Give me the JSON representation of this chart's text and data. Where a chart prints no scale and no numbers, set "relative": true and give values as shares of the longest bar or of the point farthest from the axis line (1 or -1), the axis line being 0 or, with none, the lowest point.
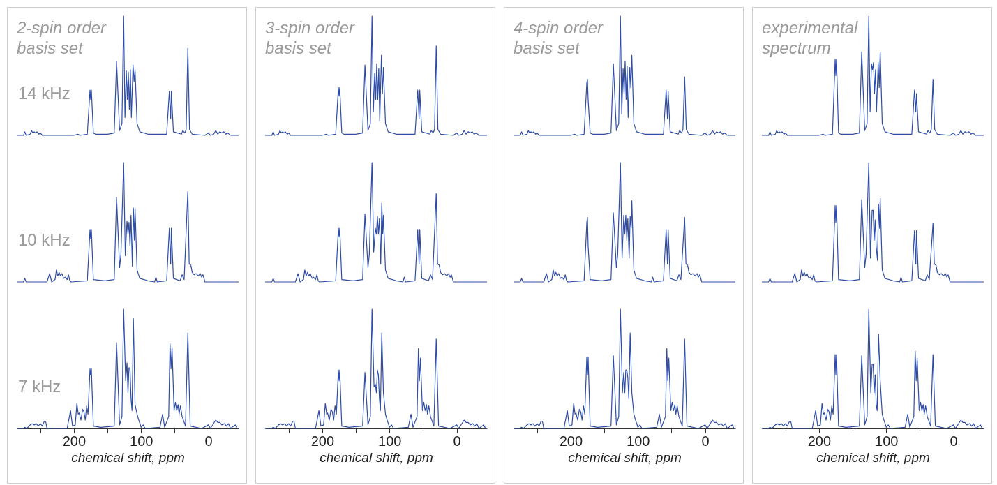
{
  "chart_data": [
    {
      "type": "line",
      "title": "2-spin order basis set",
      "annotations": [
        "14 kHz"
      ],
      "relative": true,
      "color": "#2f4da6",
      "xlim": [
        285,
        -45
      ],
      "tick_labels": false,
      "x": [
        285,
        275,
        273,
        271,
        265,
        263,
        261,
        259,
        257,
        255,
        252,
        250,
        247,
        200,
        194,
        191,
        180,
        176,
        175,
        174,
        171,
        168,
        150,
        140,
        136.5,
        132,
        128.5,
        126,
        124,
        122,
        120.5,
        119,
        117.5,
        116,
        114.5,
        112,
        110.5,
        109,
        106,
        102,
        90,
        62,
        58,
        56,
        55,
        52,
        40,
        38,
        35,
        33,
        30.5,
        28,
        24,
        5,
        0,
        -3,
        -8,
        -11,
        -14,
        -17,
        -20,
        -23,
        -26,
        -29,
        -33,
        -45
      ],
      "values": [
        0,
        0,
        0.03,
        0,
        0.01,
        0.04,
        0.02,
        0.03,
        0.02,
        0.03,
        0.01,
        0.02,
        0,
        0,
        0.01,
        0,
        0.01,
        0.38,
        0.3,
        0.38,
        0.02,
        0.01,
        0.01,
        0.02,
        0.62,
        0.04,
        0.1,
        1,
        0.15,
        0.54,
        0.3,
        0.53,
        0.22,
        0.55,
        0.15,
        0.59,
        0.45,
        0.55,
        0.1,
        0.03,
        0.01,
        0.01,
        0.37,
        0.14,
        0.37,
        0.03,
        0.01,
        0.04,
        0.02,
        0.05,
        0.73,
        0.05,
        0.01,
        0,
        0.02,
        0,
        0.01,
        0.04,
        0.01,
        0.03,
        0.02,
        0.03,
        0.01,
        0.02,
        0,
        0
      ]
    },
    {
      "type": "line",
      "annotations": [
        "10 kHz"
      ],
      "relative": true,
      "color": "#2f4da6",
      "xlim": [
        285,
        -45
      ],
      "tick_labels": false,
      "x": [
        285,
        275,
        273,
        271,
        240,
        236,
        233,
        228,
        226,
        224,
        222,
        220,
        218,
        215,
        213,
        210,
        208,
        206,
        204,
        180,
        176,
        175,
        174,
        171,
        154,
        140,
        136.5,
        132,
        130,
        126,
        123.5,
        121,
        119.5,
        118,
        116.5,
        115,
        113,
        111.5,
        110,
        109,
        106,
        102,
        90,
        80,
        78,
        76,
        62,
        58,
        56,
        55,
        52,
        42,
        39,
        36,
        30.5,
        28.5,
        26,
        24,
        21,
        18,
        15,
        12,
        10,
        8,
        5,
        -45
      ],
      "values": [
        0,
        0,
        0.03,
        0,
        0,
        0.07,
        0,
        0.02,
        0.1,
        0.05,
        0.08,
        0.05,
        0.07,
        0.03,
        0.04,
        0.02,
        0.06,
        0.01,
        0,
        0.01,
        0.44,
        0.36,
        0.44,
        0.02,
        0.01,
        0.02,
        0.71,
        0.12,
        0.23,
        1,
        0.22,
        0.51,
        0.4,
        0.5,
        0.3,
        0.56,
        0.13,
        0.62,
        0.35,
        0.62,
        0.1,
        0.03,
        0.01,
        0,
        0.04,
        0,
        0.01,
        0.45,
        0.15,
        0.45,
        0.03,
        0.01,
        0.06,
        0.02,
        0.76,
        0.15,
        0.14,
        0.08,
        0.06,
        0.07,
        0.05,
        0.07,
        0.04,
        0.06,
        0,
        0
      ]
    },
    {
      "type": "line",
      "annotations": [
        "7 kHz"
      ],
      "relative": true,
      "color": "#2f4da6",
      "xlim": [
        285,
        -45
      ],
      "tick_labels": "x",
      "xlabel": "chemical shift, ppm",
      "xticks": [
        {
          "value": 250,
          "label": null
        },
        200,
        {
          "value": 150,
          "label": null
        },
        100,
        {
          "value": 50,
          "label": null
        },
        0
      ],
      "x": [
        285,
        275,
        273,
        270,
        265,
        262,
        259,
        256,
        253,
        250,
        247,
        244,
        242,
        240,
        210,
        205,
        202,
        198,
        195.5,
        193.5,
        192,
        189.5,
        187,
        185,
        183,
        181,
        179,
        176,
        175,
        174,
        171,
        160,
        140,
        136.5,
        132,
        128.5,
        126,
        123,
        121,
        119.5,
        118,
        116.5,
        115,
        113.5,
        111.5,
        109,
        106,
        104,
        100,
        97,
        94,
        72,
        68,
        65,
        59,
        57,
        55.5,
        54,
        51,
        49,
        47,
        45,
        43.5,
        41.5,
        39,
        34,
        30.5,
        27,
        10,
        0,
        -3,
        -11,
        -14,
        -17,
        -20,
        -24,
        -27,
        -30,
        -33,
        -40,
        -43,
        -45
      ],
      "values": [
        0,
        0,
        0.01,
        0,
        0.03,
        0.04,
        0.03,
        0.04,
        0.02,
        0.04,
        0.02,
        0.06,
        0.06,
        0,
        0,
        0.15,
        0.02,
        0.03,
        0.21,
        0.12,
        0.13,
        0.07,
        0.16,
        0.14,
        0.07,
        0.19,
        0.12,
        0.5,
        0.45,
        0.5,
        0.02,
        0.01,
        0.02,
        0.72,
        0.03,
        0.1,
        1,
        0.4,
        0.55,
        0.3,
        0.51,
        0.5,
        0.25,
        0.15,
        0.92,
        0.2,
        0.12,
        0.08,
        0.01,
        0.03,
        0,
        0.01,
        0.12,
        0.01,
        0.1,
        0.71,
        0.5,
        0.68,
        0.15,
        0.22,
        0.15,
        0.2,
        0.12,
        0.19,
        0.1,
        0.02,
        0.8,
        0.02,
        0,
        0.03,
        0,
        0.07,
        0.05,
        0.05,
        0.03,
        0.04,
        0.02,
        0.04,
        0,
        0.03,
        0,
        0
      ]
    },
    {
      "type": "line",
      "title": "3-spin order basis set",
      "relative": true,
      "color": "#2f4da6",
      "xlim": [
        285,
        -45
      ],
      "tick_labels": false,
      "x": [
        285,
        275,
        273,
        271,
        265,
        263,
        261,
        259,
        257,
        255,
        252,
        250,
        247,
        200,
        194,
        191,
        180,
        176,
        175,
        174,
        171,
        168,
        150,
        140,
        136.5,
        132,
        128.5,
        126,
        124,
        122,
        120.5,
        119,
        117.5,
        116,
        114.5,
        112,
        110.5,
        109,
        106,
        102,
        90,
        62,
        58,
        56,
        55,
        52,
        40,
        38,
        35,
        33,
        30.5,
        28,
        24,
        5,
        0,
        -3,
        -8,
        -11,
        -14,
        -17,
        -20,
        -23,
        -26,
        -29,
        -33,
        -45
      ],
      "values": [
        0,
        0,
        0.03,
        0,
        0.01,
        0.04,
        0.02,
        0.03,
        0.02,
        0.03,
        0.01,
        0.02,
        0,
        0,
        0.01,
        0,
        0.01,
        0.4,
        0.33,
        0.4,
        0.02,
        0.01,
        0.01,
        0.02,
        0.59,
        0.04,
        0.1,
        1,
        0.2,
        0.52,
        0.3,
        0.6,
        0.3,
        0.56,
        0.12,
        0.67,
        0.35,
        0.57,
        0.1,
        0.03,
        0.01,
        0.01,
        0.38,
        0.14,
        0.38,
        0.03,
        0.01,
        0.04,
        0.02,
        0.05,
        0.75,
        0.05,
        0.01,
        0,
        0.02,
        0,
        0.01,
        0.04,
        0.01,
        0.03,
        0.02,
        0.03,
        0.01,
        0.02,
        0,
        0
      ]
    },
    {
      "type": "line",
      "relative": true,
      "color": "#2f4da6",
      "xlim": [
        285,
        -45
      ],
      "tick_labels": false,
      "x": [
        285,
        275,
        273,
        271,
        240,
        236,
        233,
        228,
        226,
        224,
        222,
        220,
        218,
        215,
        213,
        210,
        208,
        206,
        204,
        180,
        176,
        175,
        174,
        171,
        154,
        140,
        136.5,
        132,
        130,
        126,
        123.5,
        121,
        119.5,
        118,
        116.5,
        115,
        113,
        111.5,
        110,
        109,
        106,
        102,
        90,
        80,
        78,
        76,
        62,
        58,
        56,
        55,
        52,
        42,
        39,
        36,
        30.5,
        28.5,
        26,
        24,
        21,
        18,
        15,
        12,
        10,
        8,
        5,
        -45
      ],
      "values": [
        0,
        0,
        0.03,
        0,
        0,
        0.07,
        0,
        0.02,
        0.1,
        0.05,
        0.08,
        0.05,
        0.07,
        0.03,
        0.04,
        0.02,
        0.06,
        0.01,
        0,
        0.01,
        0.45,
        0.38,
        0.45,
        0.02,
        0.01,
        0.02,
        0.57,
        0.12,
        0.23,
        1,
        0.25,
        0.45,
        0.4,
        0.55,
        0.4,
        0.53,
        0.15,
        0.66,
        0.4,
        0.56,
        0.1,
        0.03,
        0.01,
        0,
        0.04,
        0,
        0.01,
        0.44,
        0.15,
        0.44,
        0.03,
        0.01,
        0.06,
        0.02,
        0.74,
        0.15,
        0.14,
        0.08,
        0.06,
        0.07,
        0.05,
        0.07,
        0.04,
        0.06,
        0,
        0
      ]
    },
    {
      "type": "line",
      "relative": true,
      "color": "#2f4da6",
      "xlim": [
        285,
        -45
      ],
      "tick_labels": "x",
      "xlabel": "chemical shift, ppm",
      "xticks": [
        {
          "value": 250,
          "label": null
        },
        200,
        {
          "value": 150,
          "label": null
        },
        100,
        {
          "value": 50,
          "label": null
        },
        0
      ],
      "x": [
        285,
        275,
        273,
        270,
        265,
        262,
        259,
        256,
        253,
        250,
        247,
        244,
        242,
        240,
        210,
        205,
        202,
        198,
        195.5,
        193.5,
        192,
        189.5,
        187,
        185,
        183,
        181,
        179,
        176,
        175,
        174,
        171,
        160,
        140,
        136.5,
        132,
        128.5,
        126,
        123,
        121,
        119.5,
        118,
        116.5,
        115,
        113.5,
        111.5,
        109,
        106,
        104,
        100,
        97,
        94,
        72,
        68,
        65,
        59,
        57,
        55.5,
        54,
        51,
        49,
        47,
        45,
        43.5,
        41.5,
        39,
        34,
        30.5,
        27,
        10,
        0,
        -3,
        -11,
        -14,
        -17,
        -20,
        -24,
        -27,
        -30,
        -33,
        -40,
        -43,
        -45
      ],
      "values": [
        0,
        0,
        0.01,
        0,
        0.03,
        0.04,
        0.03,
        0.04,
        0.02,
        0.04,
        0.02,
        0.06,
        0.06,
        0,
        0,
        0.15,
        0.02,
        0.03,
        0.21,
        0.12,
        0.13,
        0.07,
        0.16,
        0.14,
        0.07,
        0.19,
        0.12,
        0.49,
        0.4,
        0.49,
        0.02,
        0.01,
        0.02,
        0.47,
        0.03,
        0.1,
        1,
        0.35,
        0.37,
        0.3,
        0.49,
        0.45,
        0.25,
        0.15,
        0.8,
        0.3,
        0.12,
        0.08,
        0.01,
        0.03,
        0,
        0.01,
        0.12,
        0.01,
        0.1,
        0.67,
        0.4,
        0.59,
        0.15,
        0.22,
        0.15,
        0.2,
        0.12,
        0.19,
        0.1,
        0.02,
        0.75,
        0.02,
        0,
        0.03,
        0,
        0.07,
        0.05,
        0.05,
        0.03,
        0.04,
        0.02,
        0.04,
        0,
        0.03,
        0,
        0
      ]
    },
    {
      "type": "line",
      "title": "4-spin order basis set",
      "relative": true,
      "color": "#2f4da6",
      "xlim": [
        285,
        -45
      ],
      "tick_labels": false,
      "x": [
        285,
        275,
        273,
        271,
        265,
        263,
        261,
        259,
        257,
        255,
        252,
        250,
        247,
        200,
        194,
        191,
        180,
        176,
        175,
        174,
        171,
        168,
        150,
        140,
        136.5,
        132,
        128.5,
        126,
        124,
        122,
        120.5,
        119,
        117.5,
        116,
        114.5,
        112,
        110.5,
        109,
        106,
        102,
        90,
        62,
        58,
        56,
        55,
        52,
        40,
        38,
        35,
        33,
        30.5,
        28,
        24,
        5,
        0,
        -3,
        -8,
        -11,
        -14,
        -17,
        -20,
        -23,
        -26,
        -29,
        -33,
        -45
      ],
      "values": [
        0,
        0,
        0.03,
        0,
        0.01,
        0.04,
        0.02,
        0.03,
        0.02,
        0.03,
        0.01,
        0.02,
        0,
        0,
        0.01,
        0,
        0.01,
        0.44,
        0.47,
        0.3,
        0.02,
        0.01,
        0.01,
        0.02,
        0.6,
        0.04,
        0.1,
        1,
        0.18,
        0.56,
        0.35,
        0.62,
        0.3,
        0.58,
        0.15,
        0.57,
        0.4,
        0.67,
        0.1,
        0.03,
        0.01,
        0.01,
        0.38,
        0.14,
        0.37,
        0.03,
        0.01,
        0.04,
        0.02,
        0.05,
        0.49,
        0.05,
        0.01,
        0,
        0.02,
        0,
        0.01,
        0.04,
        0.01,
        0.03,
        0.02,
        0.03,
        0.01,
        0.02,
        0,
        0
      ]
    },
    {
      "type": "line",
      "relative": true,
      "color": "#2f4da6",
      "xlim": [
        285,
        -45
      ],
      "tick_labels": false,
      "x": [
        285,
        275,
        273,
        271,
        240,
        236,
        233,
        228,
        226,
        224,
        222,
        220,
        218,
        215,
        213,
        210,
        208,
        206,
        204,
        180,
        176,
        175,
        174,
        171,
        154,
        140,
        136.5,
        132,
        130,
        126,
        123.5,
        121,
        119.5,
        118,
        116.5,
        115,
        113,
        111.5,
        110,
        109,
        106,
        102,
        90,
        80,
        78,
        76,
        62,
        58,
        56,
        55,
        52,
        42,
        39,
        36,
        30.5,
        28.5,
        26,
        24,
        21,
        18,
        15,
        12,
        10,
        8,
        5,
        -45
      ],
      "values": [
        0,
        0,
        0.03,
        0,
        0,
        0.07,
        0,
        0.02,
        0.1,
        0.05,
        0.08,
        0.05,
        0.07,
        0.03,
        0.04,
        0.02,
        0.06,
        0.01,
        0,
        0.01,
        0.5,
        0.54,
        0.3,
        0.02,
        0.01,
        0.02,
        0.58,
        0.12,
        0.23,
        1,
        0.2,
        0.56,
        0.4,
        0.56,
        0.35,
        0.53,
        0.2,
        0.55,
        0.45,
        0.68,
        0.1,
        0.03,
        0.01,
        0,
        0.04,
        0,
        0.01,
        0.44,
        0.15,
        0.44,
        0.03,
        0.01,
        0.06,
        0.02,
        0.54,
        0.15,
        0.14,
        0.08,
        0.06,
        0.07,
        0.05,
        0.07,
        0.04,
        0.06,
        0,
        0
      ]
    },
    {
      "type": "line",
      "relative": true,
      "color": "#2f4da6",
      "xlim": [
        285,
        -45
      ],
      "tick_labels": "x",
      "xlabel": "chemical shift, ppm",
      "xticks": [
        {
          "value": 250,
          "label": null
        },
        200,
        {
          "value": 150,
          "label": null
        },
        100,
        {
          "value": 50,
          "label": null
        },
        0
      ],
      "x": [
        285,
        275,
        273,
        270,
        265,
        262,
        259,
        256,
        253,
        250,
        247,
        244,
        242,
        240,
        210,
        205,
        202,
        198,
        195.5,
        193.5,
        192,
        189.5,
        187,
        185,
        183,
        181,
        179,
        176,
        175,
        174,
        171,
        160,
        140,
        136.5,
        132,
        128.5,
        126,
        123,
        121,
        119.5,
        118,
        116.5,
        115,
        113.5,
        111.5,
        109,
        106,
        104,
        100,
        97,
        94,
        72,
        68,
        65,
        59,
        57,
        55.5,
        54,
        51,
        49,
        47,
        45,
        43.5,
        41.5,
        39,
        34,
        30.5,
        27,
        10,
        0,
        -3,
        -11,
        -14,
        -17,
        -20,
        -24,
        -27,
        -30,
        -33,
        -40,
        -43,
        -45
      ],
      "values": [
        0,
        0,
        0.01,
        0,
        0.03,
        0.04,
        0.03,
        0.04,
        0.02,
        0.04,
        0.02,
        0.06,
        0.06,
        0,
        0,
        0.15,
        0.02,
        0.03,
        0.21,
        0.12,
        0.13,
        0.07,
        0.16,
        0.14,
        0.07,
        0.19,
        0.12,
        0.6,
        0.45,
        0.6,
        0.02,
        0.01,
        0.02,
        0.61,
        0.03,
        0.1,
        1,
        0.3,
        0.47,
        0.3,
        0.49,
        0.49,
        0.43,
        0.25,
        0.8,
        0.3,
        0.12,
        0.08,
        0.01,
        0.03,
        0,
        0.01,
        0.12,
        0.01,
        0.1,
        0.67,
        0.4,
        0.59,
        0.15,
        0.22,
        0.15,
        0.2,
        0.12,
        0.19,
        0.1,
        0.02,
        0.75,
        0.02,
        0,
        0.03,
        0,
        0.07,
        0.05,
        0.05,
        0.03,
        0.04,
        0.02,
        0.04,
        0,
        0.03,
        0,
        0
      ]
    },
    {
      "type": "line",
      "title": "experimental spectrum",
      "relative": true,
      "color": "#2f4da6",
      "xlim": [
        285,
        -45
      ],
      "tick_labels": false,
      "x": [
        285,
        275,
        273,
        271,
        265,
        263,
        261,
        259,
        257,
        255,
        252,
        250,
        247,
        200,
        194,
        191,
        180,
        176,
        175,
        174,
        171,
        168,
        150,
        140,
        136.5,
        132,
        128.5,
        126,
        124,
        122,
        120.5,
        119,
        117.5,
        116,
        114.5,
        112,
        110.5,
        109,
        106,
        102,
        90,
        62,
        58,
        56,
        55,
        52,
        40,
        38,
        35,
        33,
        30.5,
        28,
        24,
        5,
        0,
        -3,
        -8,
        -11,
        -14,
        -17,
        -20,
        -23,
        -26,
        -29,
        -33,
        -45
      ],
      "values": [
        0,
        0,
        0.03,
        0,
        0.01,
        0.04,
        0.02,
        0.03,
        0.02,
        0.03,
        0.01,
        0.02,
        0,
        0,
        0.01,
        0,
        0.01,
        0.64,
        0.5,
        0.64,
        0.02,
        0.01,
        0.01,
        0.02,
        0.7,
        0.04,
        0.1,
        1,
        0.2,
        0.6,
        0.55,
        0.61,
        0.35,
        0.55,
        0.2,
        0.61,
        0.4,
        0.7,
        0.1,
        0.03,
        0.01,
        0.01,
        0.38,
        0.2,
        0.35,
        0.03,
        0.01,
        0.04,
        0.02,
        0.05,
        0.47,
        0.05,
        0.01,
        0,
        0.02,
        0,
        0.01,
        0.04,
        0.01,
        0.03,
        0.02,
        0.03,
        0.01,
        0.02,
        0,
        0
      ]
    },
    {
      "type": "line",
      "relative": true,
      "color": "#2f4da6",
      "xlim": [
        285,
        -45
      ],
      "tick_labels": false,
      "x": [
        285,
        275,
        273,
        271,
        240,
        236,
        233,
        228,
        226,
        224,
        222,
        220,
        218,
        215,
        213,
        210,
        208,
        206,
        204,
        180,
        176,
        175,
        174,
        171,
        154,
        140,
        136.5,
        132,
        130,
        126,
        123.5,
        121,
        119.5,
        118,
        116.5,
        115,
        113,
        111.5,
        110,
        109,
        106,
        102,
        90,
        80,
        78,
        76,
        62,
        58,
        56,
        55,
        52,
        42,
        39,
        36,
        30.5,
        28.5,
        26,
        24,
        21,
        18,
        15,
        12,
        10,
        8,
        5,
        -45
      ],
      "values": [
        0,
        0,
        0.03,
        0,
        0,
        0.07,
        0,
        0.02,
        0.1,
        0.05,
        0.08,
        0.05,
        0.07,
        0.03,
        0.04,
        0.02,
        0.06,
        0.01,
        0,
        0.01,
        0.64,
        0.5,
        0.64,
        0.02,
        0.01,
        0.02,
        0.69,
        0.12,
        0.23,
        1,
        0.2,
        0.6,
        0.6,
        0.35,
        0.52,
        0.3,
        0.18,
        0.65,
        0.45,
        0.7,
        0.1,
        0.03,
        0.01,
        0,
        0.04,
        0,
        0.01,
        0.43,
        0.15,
        0.43,
        0.03,
        0.01,
        0.06,
        0.02,
        0.49,
        0.15,
        0.14,
        0.08,
        0.06,
        0.07,
        0.05,
        0.07,
        0.04,
        0.06,
        0,
        0
      ]
    },
    {
      "type": "line",
      "relative": true,
      "color": "#2f4da6",
      "xlim": [
        285,
        -45
      ],
      "tick_labels": "x",
      "xlabel": "chemical shift, ppm",
      "xticks": [
        {
          "value": 250,
          "label": null
        },
        200,
        {
          "value": 150,
          "label": null
        },
        100,
        {
          "value": 50,
          "label": null
        },
        0
      ],
      "x": [
        285,
        275,
        273,
        270,
        265,
        262,
        259,
        256,
        253,
        250,
        247,
        244,
        242,
        240,
        210,
        205,
        202,
        198,
        195.5,
        193.5,
        192,
        189.5,
        187,
        185,
        183,
        181,
        179,
        176,
        175,
        174,
        171,
        160,
        140,
        136.5,
        132,
        128.5,
        126,
        123,
        121,
        119.5,
        118,
        116.5,
        115,
        113.5,
        111.5,
        109,
        106,
        104,
        100,
        97,
        94,
        72,
        68,
        65,
        59,
        57,
        55.5,
        54,
        51,
        49,
        47,
        45,
        43.5,
        41.5,
        39,
        34,
        30.5,
        27,
        10,
        0,
        -3,
        -11,
        -14,
        -17,
        -20,
        -24,
        -27,
        -30,
        -33,
        -40,
        -43,
        -45
      ],
      "values": [
        0,
        0,
        0.01,
        0,
        0.03,
        0.04,
        0.03,
        0.04,
        0.02,
        0.04,
        0.02,
        0.06,
        0.06,
        0,
        0,
        0.15,
        0.02,
        0.03,
        0.21,
        0.12,
        0.13,
        0.07,
        0.16,
        0.14,
        0.07,
        0.19,
        0.12,
        0.62,
        0.45,
        0.62,
        0.02,
        0.01,
        0.02,
        0.61,
        0.03,
        0.1,
        1,
        0.3,
        0.54,
        0.54,
        0.3,
        0.45,
        0.2,
        0.15,
        0.79,
        0.4,
        0.12,
        0.08,
        0.01,
        0.03,
        0,
        0.01,
        0.12,
        0.01,
        0.1,
        0.65,
        0.4,
        0.59,
        0.15,
        0.22,
        0.15,
        0.2,
        0.12,
        0.19,
        0.1,
        0.02,
        0.62,
        0.02,
        0,
        0.03,
        0,
        0.07,
        0.05,
        0.05,
        0.03,
        0.04,
        0.02,
        0.04,
        0,
        0.03,
        0,
        0
      ]
    }
  ]
}
